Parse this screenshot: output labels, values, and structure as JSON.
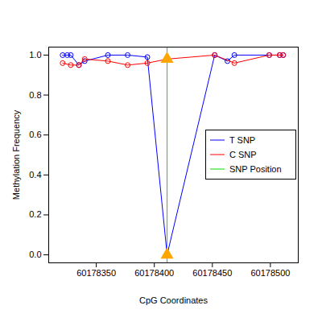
{
  "chart_data": {
    "type": "line",
    "x_label": "CpG Coordinates",
    "y_label": "Methylation Frequency",
    "xlim": [
      60178309,
      60178524
    ],
    "xticks": [
      60178350,
      60178400,
      60178450,
      60178500
    ],
    "ylim": [
      -0.04,
      1.04
    ],
    "yticks": [
      {
        "value": 0,
        "label": "0.0"
      },
      {
        "value": 0.2,
        "label": "0.2"
      },
      {
        "value": 0.4,
        "label": "0.4"
      },
      {
        "value": 0.6,
        "label": "0.6"
      },
      {
        "value": 0.8,
        "label": "0.8"
      },
      {
        "value": 1,
        "label": "1.0"
      }
    ],
    "legend": "right",
    "grid": false,
    "series": [
      {
        "name": "T SNP",
        "color": "#0000ff",
        "marker": "circle",
        "x": [
          60178321,
          60178325,
          60178328,
          60178335,
          60178340,
          60178360,
          60178377,
          60178394,
          60178411,
          60178452,
          60178463,
          60178469,
          60178499,
          60178508,
          60178511
        ],
        "values": [
          1.0,
          1.0,
          1.0,
          0.95,
          0.97,
          1.0,
          1.0,
          0.99,
          0.0,
          1.0,
          0.97,
          1.0,
          1.0,
          1.0,
          1.0
        ]
      },
      {
        "name": "C SNP",
        "color": "#ff0000",
        "marker": "circle",
        "x": [
          60178321,
          60178328,
          60178335,
          60178340,
          60178360,
          60178377,
          60178394,
          60178411,
          60178452,
          60178469,
          60178499,
          60178508,
          60178511
        ],
        "values": [
          0.96,
          0.95,
          0.95,
          0.98,
          0.97,
          0.95,
          0.96,
          0.98,
          1.0,
          0.96,
          1.0,
          1.0,
          1.0
        ]
      }
    ],
    "snp": {
      "name": "SNP Position",
      "color": "#00dd00",
      "x": 60178411,
      "marker": "triangle"
    }
  }
}
